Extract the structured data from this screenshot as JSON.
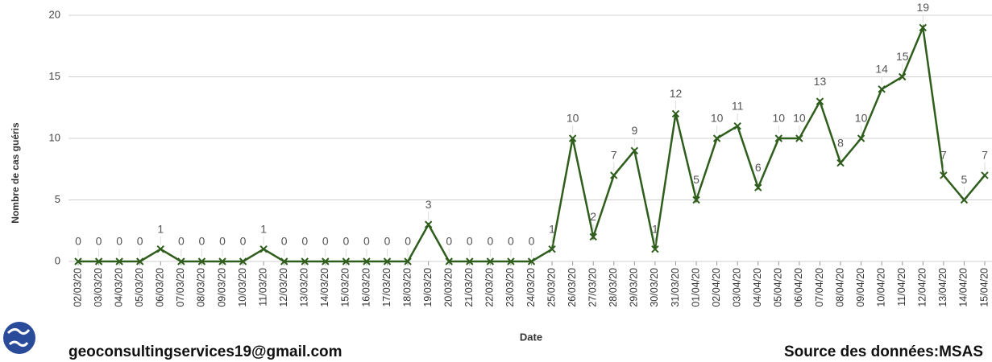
{
  "chart_data": {
    "type": "line",
    "x_label": "Date",
    "y_label": "Nombre de cas guéris",
    "categories": [
      "02/03/20",
      "03/03/20",
      "04/03/20",
      "05/03/20",
      "06/03/20",
      "07/03/20",
      "08/03/20",
      "09/03/20",
      "10/03/20",
      "11/03/20",
      "12/03/20",
      "13/03/20",
      "14/03/20",
      "15/03/20",
      "16/03/20",
      "17/03/20",
      "18/03/20",
      "19/03/20",
      "20/03/20",
      "21/03/20",
      "22/03/20",
      "23/03/20",
      "24/03/20",
      "25/03/20",
      "26/03/20",
      "27/03/20",
      "28/03/20",
      "29/03/20",
      "30/03/20",
      "31/03/20",
      "01/04/20",
      "02/04/20",
      "03/04/20",
      "04/04/20",
      "05/04/20",
      "06/04/20",
      "07/04/20",
      "08/04/20",
      "09/04/20",
      "10/04/20",
      "11/04/20",
      "12/04/20",
      "13/04/20",
      "14/04/20",
      "15/04/20"
    ],
    "values": [
      0,
      0,
      0,
      0,
      1,
      0,
      0,
      0,
      0,
      1,
      0,
      0,
      0,
      0,
      0,
      0,
      0,
      3,
      0,
      0,
      0,
      0,
      0,
      1,
      10,
      2,
      7,
      9,
      1,
      12,
      5,
      10,
      11,
      6,
      10,
      10,
      13,
      8,
      10,
      14,
      15,
      19,
      7,
      5,
      7
    ],
    "color": "#2f5d1c",
    "ylim": [
      0,
      20
    ],
    "yticks": [
      0,
      5,
      10,
      15,
      20
    ],
    "grid": true
  },
  "footer": {
    "email": "geoconsultingservices19@gmail.com",
    "source": "Source des données:MSAS"
  }
}
